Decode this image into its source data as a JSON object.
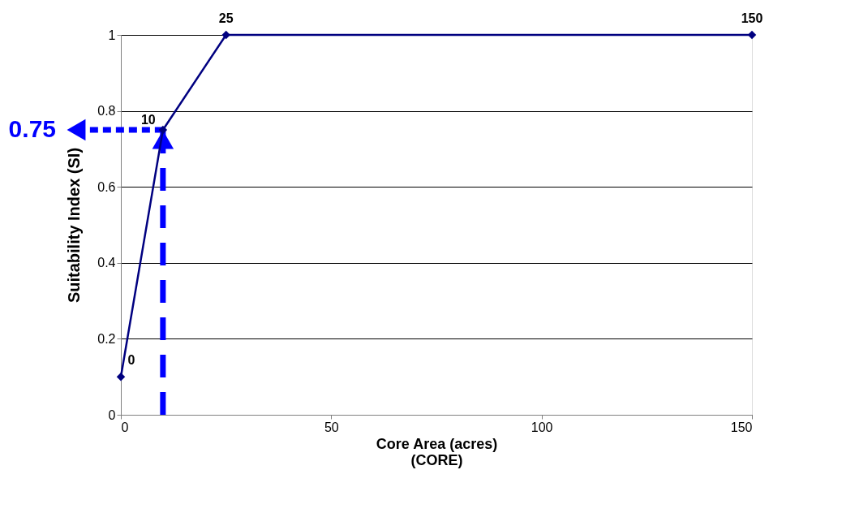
{
  "chart_data": {
    "type": "line",
    "xlabel": "Core Area (acres)\n(CORE)",
    "ylabel": "Suitability Index (SI)",
    "x": [
      0,
      10,
      25,
      150
    ],
    "series": [
      {
        "color": "#000080",
        "values": [
          0.1,
          0.75,
          1,
          1
        ]
      }
    ],
    "xlim": [
      0,
      150
    ],
    "xticks": [
      0,
      50,
      100,
      150
    ],
    "ylim": [
      0,
      1
    ],
    "yticks": [
      0,
      0.2,
      0.4,
      0.6,
      0.8,
      1
    ],
    "grid": "y",
    "marker": "diamond",
    "line_style": "solid",
    "ref_lines": [
      {
        "axis": "x",
        "value": 10,
        "color": "#0000ff",
        "line_style": "dashed",
        "label": null
      },
      {
        "axis": "y",
        "value": 0.75,
        "color": "#0000ff",
        "line_style": "dotted",
        "label": "0.75"
      }
    ],
    "annotations": [
      {
        "text": "0",
        "x": 0,
        "y": 0.1
      },
      {
        "text": "10",
        "x": 10,
        "y": 0.75
      },
      {
        "text": "25",
        "x": 25,
        "y": 1
      },
      {
        "text": "150",
        "x": 150,
        "y": 1
      }
    ]
  }
}
